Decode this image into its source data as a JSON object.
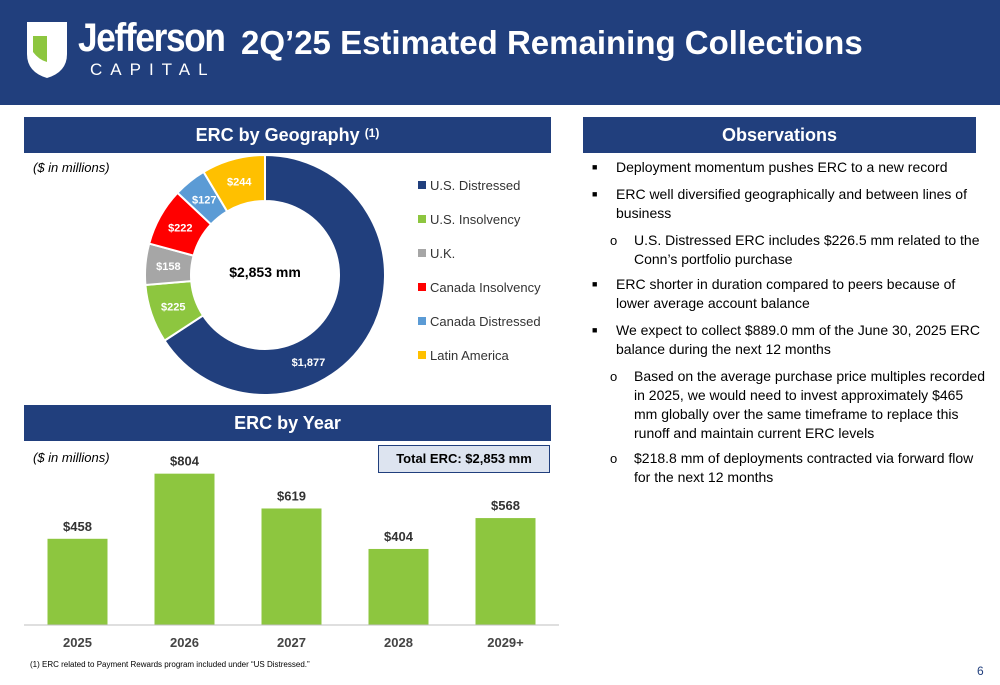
{
  "header": {
    "logo_name": "Jefferson",
    "logo_sub": "CAPITAL",
    "title": "2Q’25 Estimated Remaining Collections",
    "brand_color": "#213f7d"
  },
  "geo_section": {
    "title": "ERC by Geography",
    "title_note": "(1)",
    "units": "($ in millions)",
    "center_label": "$2,853 mm"
  },
  "year_section": {
    "title": "ERC by Year",
    "units": "($ in millions)",
    "total_label": "Total ERC: $2,853 mm"
  },
  "observations": {
    "title": "Observations",
    "items": [
      {
        "text": "Deployment momentum pushes ERC to a new record",
        "subs": []
      },
      {
        "text": "ERC well diversified geographically and between lines of business",
        "subs": [
          "U.S. Distressed ERC includes $226.5 mm related to the Conn’s portfolio purchase"
        ]
      },
      {
        "text": "ERC shorter in duration compared to peers because of lower average account balance",
        "subs": []
      },
      {
        "text": "We expect to collect $889.0 mm of the June 30, 2025 ERC balance during the next 12 months",
        "subs": [
          "Based on the average purchase price multiples recorded in 2025, we would need to invest approximately $465 mm globally over the same timeframe to replace this runoff and maintain current ERC levels",
          "$218.8 mm of deployments contracted via forward flow for the next 12 months"
        ]
      }
    ]
  },
  "footnote": "(1) ERC related to Payment Rewards program included under “US Distressed.”",
  "page_number": "6",
  "chart_data": [
    {
      "type": "pie",
      "donut": true,
      "title": "ERC by Geography",
      "categories": [
        "U.S. Distressed",
        "U.S. Insolvency",
        "U.K.",
        "Canada Insolvency",
        "Canada Distressed",
        "Latin America"
      ],
      "values": [
        1877,
        225,
        158,
        222,
        127,
        244
      ],
      "labels": [
        "$1,877",
        "$225",
        "$158",
        "$222",
        "$127",
        "$244"
      ],
      "colors": [
        "#213f7d",
        "#8dc63f",
        "#a6a6a6",
        "#ff0000",
        "#5b9bd5",
        "#ffc000"
      ],
      "legend": "right"
    },
    {
      "type": "bar",
      "title": "ERC by Year",
      "categories": [
        "2025",
        "2026",
        "2027",
        "2028",
        "2029+"
      ],
      "values": [
        458,
        804,
        619,
        404,
        568
      ],
      "labels": [
        "$458",
        "$804",
        "$619",
        "$404",
        "$568"
      ],
      "color": "#8dc63f",
      "ylim": [
        0,
        850
      ],
      "grid": false
    }
  ]
}
